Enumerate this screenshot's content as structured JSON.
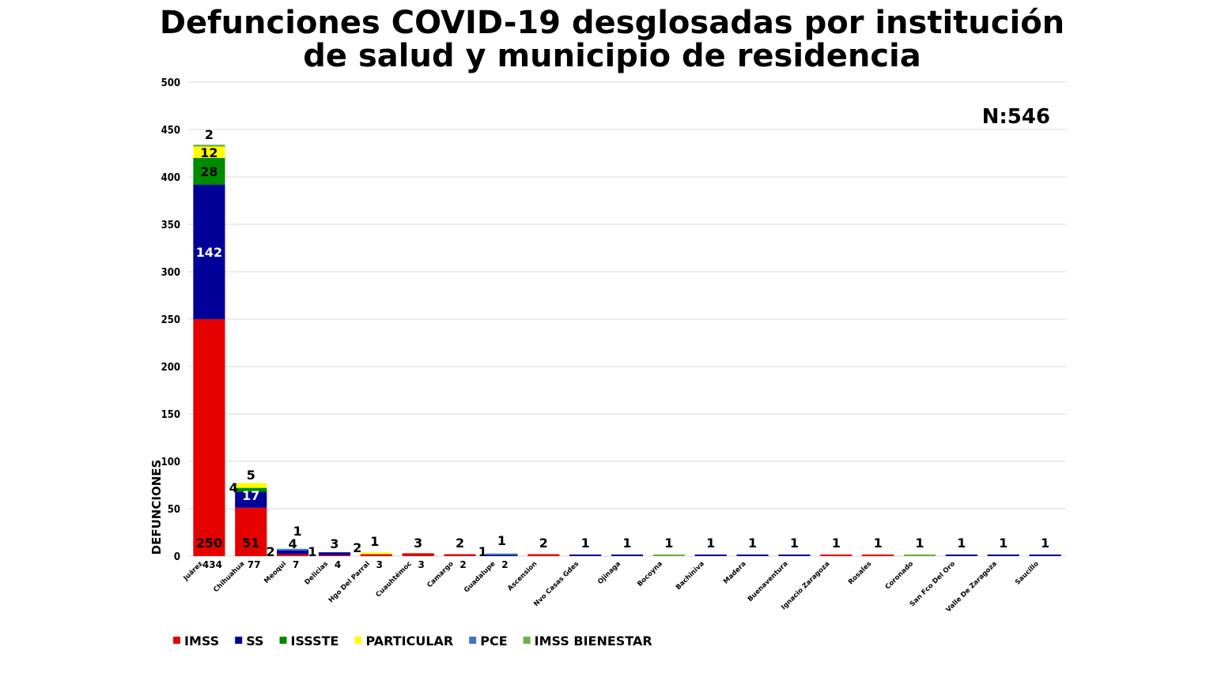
{
  "chart_data": {
    "type": "bar",
    "stacked": true,
    "title": "Defunciones COVID-19 desglosadas por institución de salud y municipio de residencia",
    "title_lines": [
      "Defunciones COVID-19 desglosadas por institución",
      "de salud y municipio de residencia"
    ],
    "ylabel": "DEFUNCIONES",
    "xlabel": "",
    "ylim": [
      0,
      500
    ],
    "yticks": [
      0,
      50,
      100,
      150,
      200,
      250,
      300,
      350,
      400,
      450,
      500
    ],
    "grid": true,
    "legend_position": "bottom-left",
    "annotation": "N:546",
    "categories": [
      "Juárez",
      "Chihuahua",
      "Meoqui",
      "Delicias",
      "Hgo Del Parral",
      "Cuauhtémoc",
      "Camargo",
      "Guadalupe",
      "Ascension",
      "Nvo Casas Gdes",
      "Ojinaga",
      "Bocoyna",
      "Bachiniva",
      "Madera",
      "Buenaventura",
      "Ignacio Zaragoza",
      "Rosales",
      "Coronado",
      "San Fco Del Oro",
      "Valle De Zaragoza",
      "Saucillo"
    ],
    "totals": [
      "434",
      "77",
      "7",
      "4",
      "3",
      "3",
      "2",
      "2",
      "",
      "",
      "",
      "",
      "",
      "",
      "",
      "",
      "",
      "",
      "",
      "",
      ""
    ],
    "series": [
      {
        "name": "IMSS",
        "color": "#e60000",
        "values": [
          250,
          51,
          2,
          1,
          2,
          3,
          2,
          0,
          2,
          0,
          0,
          0,
          0,
          0,
          0,
          1,
          1,
          0,
          0,
          0,
          0
        ]
      },
      {
        "name": "SS",
        "color": "#000099",
        "values": [
          142,
          17,
          4,
          3,
          0,
          0,
          0,
          1,
          0,
          1,
          1,
          0,
          1,
          1,
          1,
          0,
          0,
          0,
          1,
          1,
          1
        ]
      },
      {
        "name": "ISSSTE",
        "color": "#008a00",
        "values": [
          28,
          4,
          0,
          0,
          0,
          0,
          0,
          0,
          0,
          0,
          0,
          0,
          0,
          0,
          0,
          0,
          0,
          0,
          0,
          0,
          0
        ]
      },
      {
        "name": "PARTICULAR",
        "color": "#ffff00",
        "values": [
          12,
          5,
          0,
          0,
          1,
          0,
          0,
          0,
          0,
          0,
          0,
          0,
          0,
          0,
          0,
          0,
          0,
          0,
          0,
          0,
          0
        ]
      },
      {
        "name": "PCE",
        "color": "#4472c4",
        "values": [
          0,
          0,
          1,
          0,
          0,
          0,
          0,
          1,
          0,
          0,
          0,
          0,
          0,
          0,
          0,
          0,
          0,
          0,
          0,
          0,
          0
        ]
      },
      {
        "name": "IMSS BIENESTAR",
        "color": "#70ad47",
        "values": [
          2,
          0,
          0,
          0,
          0,
          0,
          0,
          0,
          0,
          0,
          0,
          1,
          0,
          0,
          0,
          0,
          0,
          1,
          0,
          0,
          0
        ]
      }
    ]
  }
}
